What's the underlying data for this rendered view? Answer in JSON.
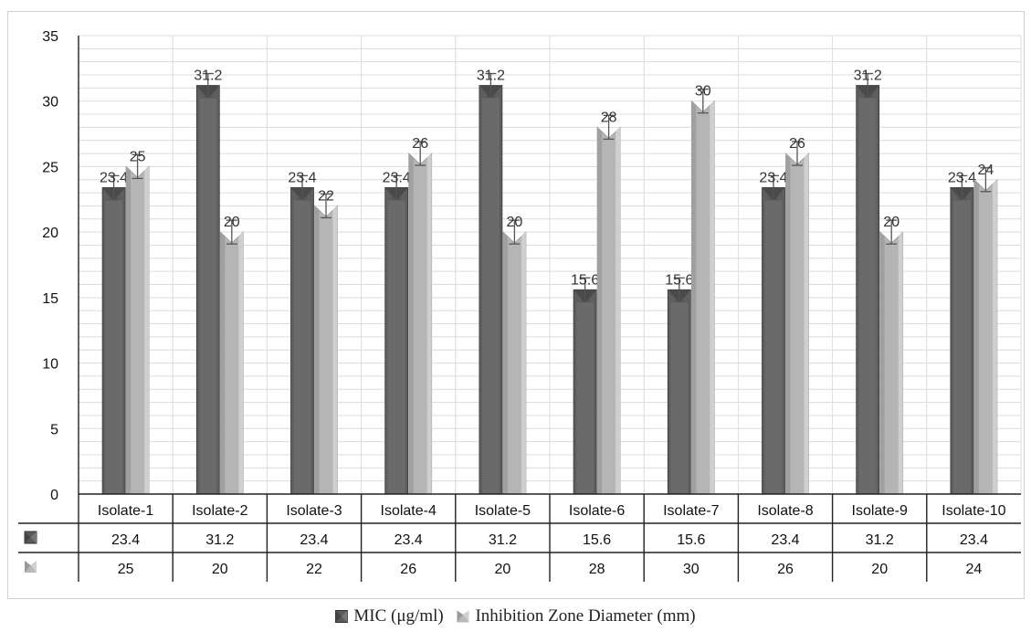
{
  "chart_data": {
    "type": "bar",
    "categories": [
      "Isolate-1",
      "Isolate-2",
      "Isolate-3",
      "Isolate-4",
      "Isolate-5",
      "Isolate-6",
      "Isolate-7",
      "Isolate-8",
      "Isolate-9",
      "Isolate-10"
    ],
    "series": [
      {
        "name": "MIC (μg/ml)",
        "values": [
          23.4,
          31.2,
          23.4,
          23.4,
          31.2,
          15.6,
          15.6,
          23.4,
          31.2,
          23.4
        ],
        "labels": [
          "23.4",
          "31.2",
          "23.4",
          "23.4",
          "31.2",
          "15.6",
          "15.6",
          "23.4",
          "31.2",
          "23.4"
        ],
        "color": "#5a5a5a"
      },
      {
        "name": "Inhibition Zone Diameter (mm)",
        "values": [
          25,
          20,
          22,
          26,
          20,
          28,
          30,
          26,
          20,
          24
        ],
        "labels": [
          "25",
          "20",
          "22",
          "26",
          "20",
          "28",
          "30",
          "26",
          "20",
          "24"
        ],
        "color": "#b8b8b8"
      }
    ],
    "ylim": [
      0,
      35
    ],
    "yticks": [
      "0",
      "5",
      "10",
      "15",
      "20",
      "25",
      "30",
      "35"
    ],
    "error_bars": true,
    "grid": true,
    "data_table": true,
    "legend_position": "bottom"
  }
}
